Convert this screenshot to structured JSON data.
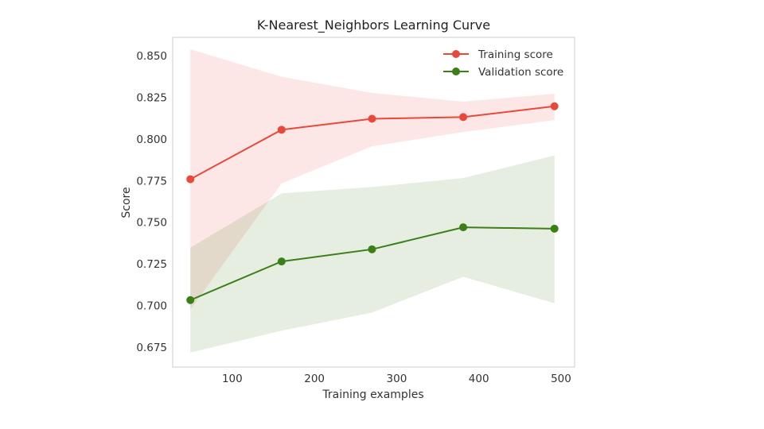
{
  "chart_data": {
    "type": "line",
    "title": "K-Nearest_Neighbors Learning Curve",
    "xlabel": "Training examples",
    "ylabel": "Score",
    "xlim": [
      27.5,
      516.5
    ],
    "ylim": [
      0.663,
      0.861
    ],
    "xticks": [
      100,
      200,
      300,
      400,
      500
    ],
    "yticks": [
      0.675,
      0.7,
      0.725,
      0.75,
      0.775,
      0.8,
      0.825,
      0.85
    ],
    "ytick_labels": [
      "0.675",
      "0.700",
      "0.725",
      "0.750",
      "0.775",
      "0.800",
      "0.825",
      "0.850"
    ],
    "xtick_labels": [
      "100",
      "200",
      "300",
      "400",
      "500"
    ],
    "grid": false,
    "legend_position": "top-right",
    "x": [
      49,
      160,
      270,
      381,
      492
    ],
    "series": [
      {
        "name": "Training score",
        "color": "#e8493a",
        "values": [
          0.7758,
          0.8055,
          0.8121,
          0.8131,
          0.8196
        ],
        "upper": [
          0.8538,
          0.8373,
          0.8276,
          0.8224,
          0.8271
        ],
        "lower": [
          0.6975,
          0.7733,
          0.7956,
          0.8041,
          0.8113
        ]
      },
      {
        "name": "Validation score",
        "color": "#3a7f17",
        "values": [
          0.7032,
          0.7264,
          0.7337,
          0.7469,
          0.7461
        ],
        "upper": [
          0.7347,
          0.7673,
          0.7711,
          0.7765,
          0.7901
        ],
        "lower": [
          0.6717,
          0.6848,
          0.6957,
          0.7172,
          0.7013
        ]
      }
    ]
  }
}
